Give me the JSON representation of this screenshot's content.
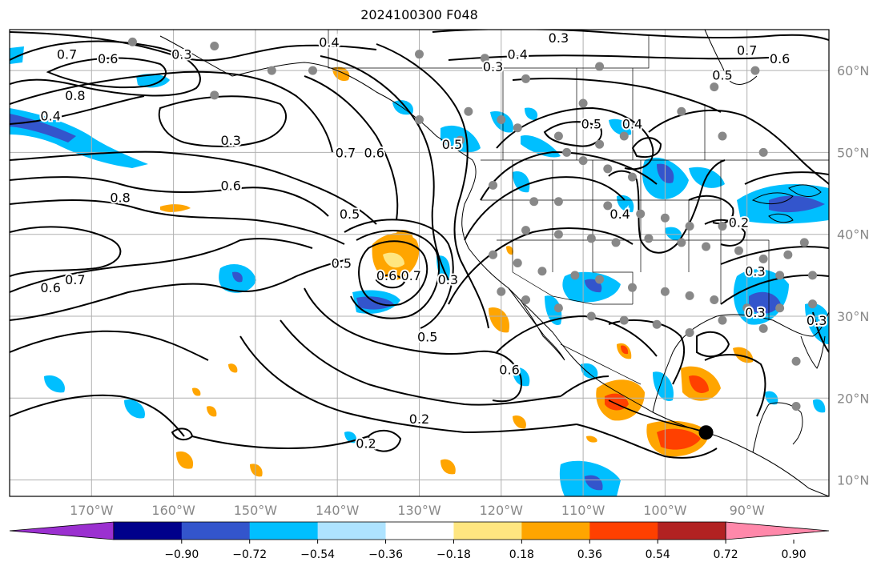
{
  "title": "2024100300 F048",
  "axes": {
    "lon_labels": [
      "170°W",
      "160°W",
      "150°W",
      "140°W",
      "130°W",
      "120°W",
      "110°W",
      "100°W",
      "90°W"
    ],
    "lon_values": [
      -170,
      -160,
      -150,
      -140,
      -130,
      -120,
      -110,
      -100,
      -90
    ],
    "lat_labels": [
      "60°N",
      "50°N",
      "40°N",
      "30°N",
      "20°N",
      "10°N"
    ],
    "lat_values": [
      60,
      50,
      40,
      30,
      20,
      10
    ],
    "lon_range": [
      -180,
      -80
    ],
    "lat_range": [
      8,
      65
    ],
    "grid": true,
    "tick_label_color": "#888888"
  },
  "colorbar": {
    "ticks": [
      "−0.90",
      "−0.72",
      "−0.54",
      "−0.36",
      "−0.18",
      "0.18",
      "0.36",
      "0.54",
      "0.72",
      "0.90"
    ],
    "colors": [
      "#9b30d0",
      "#00008b",
      "#3355cc",
      "#00bfff",
      "#aee3ff",
      "#ffffff",
      "#ffe680",
      "#ffa500",
      "#ff4000",
      "#b22222",
      "#ff88aa"
    ],
    "extend": "both"
  },
  "contour_labels": [
    {
      "text": "0.7",
      "lon": -173,
      "lat": 62
    },
    {
      "text": "0.6",
      "lon": -168,
      "lat": 61.5
    },
    {
      "text": "0.3",
      "lon": -159,
      "lat": 62
    },
    {
      "text": "0.4",
      "lon": -141,
      "lat": 63.5
    },
    {
      "text": "0.3",
      "lon": -113,
      "lat": 64
    },
    {
      "text": "0.4",
      "lon": -118,
      "lat": 62
    },
    {
      "text": "0.3",
      "lon": -121,
      "lat": 60.5
    },
    {
      "text": "0.7",
      "lon": -90,
      "lat": 62.5
    },
    {
      "text": "0.6",
      "lon": -86,
      "lat": 61.5
    },
    {
      "text": "0.5",
      "lon": -93,
      "lat": 59.5
    },
    {
      "text": "0.8",
      "lon": -172,
      "lat": 57
    },
    {
      "text": "0.4",
      "lon": -175,
      "lat": 54.5
    },
    {
      "text": "0.3",
      "lon": -153,
      "lat": 51.5
    },
    {
      "text": "0.7",
      "lon": -139,
      "lat": 50
    },
    {
      "text": "0.6",
      "lon": -135.5,
      "lat": 50
    },
    {
      "text": "0.5",
      "lon": -126,
      "lat": 51
    },
    {
      "text": "0.5",
      "lon": -109,
      "lat": 53.5
    },
    {
      "text": "0.4",
      "lon": -104,
      "lat": 53.5
    },
    {
      "text": "0.6",
      "lon": -153,
      "lat": 46
    },
    {
      "text": "0.8",
      "lon": -166.5,
      "lat": 44.5
    },
    {
      "text": "0.5",
      "lon": -138.5,
      "lat": 42.5
    },
    {
      "text": "0.4",
      "lon": -105.5,
      "lat": 42.5
    },
    {
      "text": "0.2",
      "lon": -91,
      "lat": 41.5
    },
    {
      "text": "0.5",
      "lon": -139.5,
      "lat": 36.5
    },
    {
      "text": "0.6",
      "lon": -134,
      "lat": 35
    },
    {
      "text": "0.7",
      "lon": -131,
      "lat": 35
    },
    {
      "text": "0.3",
      "lon": -126.5,
      "lat": 34.5
    },
    {
      "text": "0.7",
      "lon": -172,
      "lat": 34.5
    },
    {
      "text": "0.6",
      "lon": -175,
      "lat": 33.5
    },
    {
      "text": "0.3",
      "lon": -89,
      "lat": 35.5
    },
    {
      "text": "0.3",
      "lon": -89,
      "lat": 30.5
    },
    {
      "text": "0.5",
      "lon": -129,
      "lat": 27.5
    },
    {
      "text": "0.6",
      "lon": -119,
      "lat": 23.5
    },
    {
      "text": "0.2",
      "lon": -130,
      "lat": 17.5
    },
    {
      "text": "0.2",
      "lon": -136.5,
      "lat": 14.5
    },
    {
      "text": "0.3",
      "lon": -81.5,
      "lat": 29.5
    }
  ],
  "stations": [
    [
      -165,
      63.5
    ],
    [
      -155,
      63
    ],
    [
      -130,
      62
    ],
    [
      -122,
      61.5
    ],
    [
      -108,
      60.5
    ],
    [
      -117,
      59
    ],
    [
      -89,
      60
    ],
    [
      -94,
      58
    ],
    [
      -110,
      56
    ],
    [
      -98,
      55
    ],
    [
      -124,
      55
    ],
    [
      -120,
      54
    ],
    [
      -118,
      53
    ],
    [
      -130,
      54
    ],
    [
      -105,
      52
    ],
    [
      -93,
      52
    ],
    [
      -88,
      50
    ],
    [
      -113,
      52
    ],
    [
      -108,
      51
    ],
    [
      -112,
      50
    ],
    [
      -125,
      51.5
    ],
    [
      -110,
      49
    ],
    [
      -107,
      48
    ],
    [
      -104,
      47
    ],
    [
      -121,
      46
    ],
    [
      -116,
      44
    ],
    [
      -113,
      44
    ],
    [
      -107,
      43.5
    ],
    [
      -103,
      42.5
    ],
    [
      -100,
      42
    ],
    [
      -97,
      41
    ],
    [
      -93,
      41
    ],
    [
      -117,
      40.5
    ],
    [
      -113,
      40
    ],
    [
      -109,
      39.5
    ],
    [
      -106,
      39
    ],
    [
      -102,
      39.5
    ],
    [
      -98,
      39
    ],
    [
      -95,
      38.5
    ],
    [
      -91,
      38
    ],
    [
      -88,
      37
    ],
    [
      -85,
      37.5
    ],
    [
      -121,
      37.5
    ],
    [
      -118,
      36.5
    ],
    [
      -115,
      35.5
    ],
    [
      -111,
      35
    ],
    [
      -108,
      34.5
    ],
    [
      -104,
      33.5
    ],
    [
      -100,
      33
    ],
    [
      -97,
      32.5
    ],
    [
      -94,
      32
    ],
    [
      -90,
      31
    ],
    [
      -86,
      31
    ],
    [
      -82,
      31.5
    ],
    [
      -120,
      33
    ],
    [
      -117,
      32
    ],
    [
      -113,
      31
    ],
    [
      -109,
      30
    ],
    [
      -105,
      29.5
    ],
    [
      -101,
      29
    ],
    [
      -97,
      28
    ],
    [
      -93,
      29.5
    ],
    [
      -88,
      28.5
    ],
    [
      -84,
      24.5
    ],
    [
      -80,
      40
    ],
    [
      -83,
      39
    ],
    [
      -86,
      35
    ],
    [
      -82,
      35
    ],
    [
      -80,
      33
    ],
    [
      -84,
      19
    ],
    [
      -155,
      57
    ],
    [
      -148,
      60
    ],
    [
      -143,
      60
    ]
  ],
  "storm_center": {
    "lon": -95,
    "lat": 15.8
  }
}
